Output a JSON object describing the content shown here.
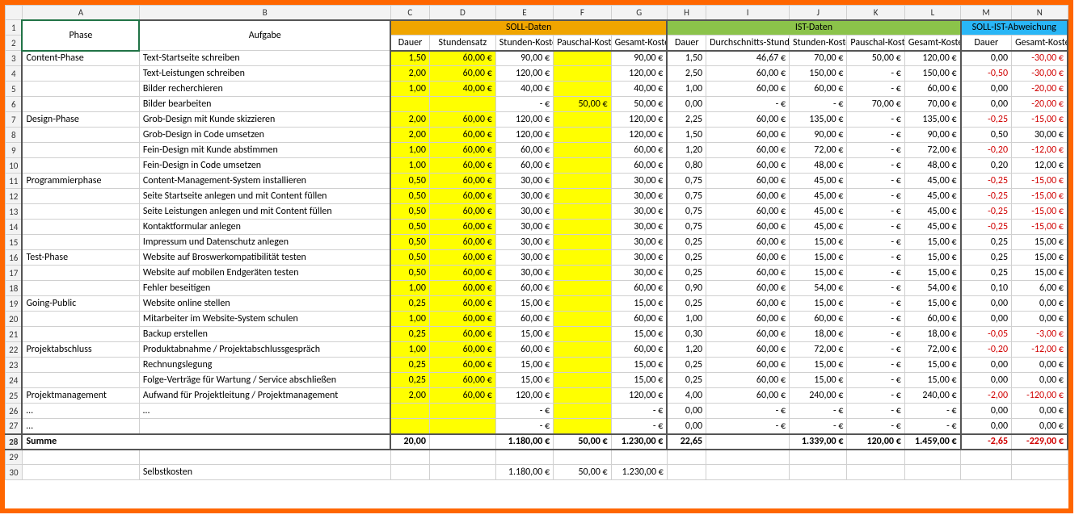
{
  "colLetters": [
    "",
    "A",
    "B",
    "C",
    "D",
    "E",
    "F",
    "G",
    "H",
    "I",
    "J",
    "K",
    "L",
    "M",
    "N"
  ],
  "widths": [
    20,
    138,
    296,
    46,
    78,
    68,
    68,
    66,
    46,
    98,
    68,
    68,
    66,
    60,
    66
  ],
  "header": {
    "phase": "Phase",
    "task": "Aufgabe",
    "soll": "SOLL-Daten",
    "ist": "IST-Daten",
    "abw": "SOLL-IST-Abweichung",
    "dauer": "Dauer",
    "satz": "Stundensatz",
    "stk": "Stunden-Kosten",
    "pk": "Pauschal-Kosten",
    "gk": "Gesamt-Kosten",
    "avg": "Durchschnitts-Stundensatz"
  },
  "rows": [
    {
      "n": 3,
      "phase": "Content-Phase",
      "task": "Text-Startseite schreiben",
      "sd": "1,50",
      "ss": "60,00 €",
      "sstk": "90,00 €",
      "spk": "",
      "sgk": "90,00 €",
      "id": "1,50",
      "ias": "46,67 €",
      "istk": "70,00 €",
      "ipk": "50,00 €",
      "igk": "120,00 €",
      "ad": "0,00",
      "agk": "-30,00 €",
      "adneg": false,
      "agneg": true
    },
    {
      "n": 4,
      "phase": "",
      "task": "Text-Leistungen schreiben",
      "sd": "2,00",
      "ss": "60,00 €",
      "sstk": "120,00 €",
      "spk": "",
      "sgk": "120,00 €",
      "id": "2,50",
      "ias": "60,00 €",
      "istk": "150,00 €",
      "ipk": "-   €",
      "igk": "150,00 €",
      "ad": "-0,50",
      "agk": "-30,00 €",
      "adneg": true,
      "agneg": true
    },
    {
      "n": 5,
      "phase": "",
      "task": "Bilder recherchieren",
      "sd": "1,00",
      "ss": "40,00 €",
      "sstk": "40,00 €",
      "spk": "",
      "sgk": "40,00 €",
      "id": "1,00",
      "ias": "60,00 €",
      "istk": "60,00 €",
      "ipk": "-   €",
      "igk": "60,00 €",
      "ad": "0,00",
      "agk": "-20,00 €",
      "adneg": false,
      "agneg": true
    },
    {
      "n": 6,
      "phase": "",
      "task": "Bilder bearbeiten",
      "sd": "",
      "ss": "",
      "sstk": "-   €",
      "spk": "50,00 €",
      "sgk": "50,00 €",
      "id": "0,00",
      "ias": "-   €",
      "istk": "-   €",
      "ipk": "70,00 €",
      "igk": "70,00 €",
      "ad": "0,00",
      "agk": "-20,00 €",
      "adneg": false,
      "agneg": true
    },
    {
      "n": 7,
      "phase": "Design-Phase",
      "task": "Grob-Design mit Kunde skizzieren",
      "sd": "2,00",
      "ss": "60,00 €",
      "sstk": "120,00 €",
      "spk": "",
      "sgk": "120,00 €",
      "id": "2,25",
      "ias": "60,00 €",
      "istk": "135,00 €",
      "ipk": "-   €",
      "igk": "135,00 €",
      "ad": "-0,25",
      "agk": "-15,00 €",
      "adneg": true,
      "agneg": true
    },
    {
      "n": 8,
      "phase": "",
      "task": "Grob-Design in Code umsetzen",
      "sd": "2,00",
      "ss": "60,00 €",
      "sstk": "120,00 €",
      "spk": "",
      "sgk": "120,00 €",
      "id": "1,50",
      "ias": "60,00 €",
      "istk": "90,00 €",
      "ipk": "-   €",
      "igk": "90,00 €",
      "ad": "0,50",
      "agk": "30,00 €",
      "adneg": false,
      "agneg": false
    },
    {
      "n": 9,
      "phase": "",
      "task": "Fein-Design mit Kunde abstimmen",
      "sd": "1,00",
      "ss": "60,00 €",
      "sstk": "60,00 €",
      "spk": "",
      "sgk": "60,00 €",
      "id": "1,20",
      "ias": "60,00 €",
      "istk": "72,00 €",
      "ipk": "-   €",
      "igk": "72,00 €",
      "ad": "-0,20",
      "agk": "-12,00 €",
      "adneg": true,
      "agneg": true
    },
    {
      "n": 10,
      "phase": "",
      "task": "Fein-Design in Code umsetzen",
      "sd": "1,00",
      "ss": "60,00 €",
      "sstk": "60,00 €",
      "spk": "",
      "sgk": "60,00 €",
      "id": "0,80",
      "ias": "60,00 €",
      "istk": "48,00 €",
      "ipk": "-   €",
      "igk": "48,00 €",
      "ad": "0,20",
      "agk": "12,00 €",
      "adneg": false,
      "agneg": false
    },
    {
      "n": 11,
      "phase": "Programmierphase",
      "task": "Content-Management-System installieren",
      "sd": "0,50",
      "ss": "60,00 €",
      "sstk": "30,00 €",
      "spk": "",
      "sgk": "30,00 €",
      "id": "0,75",
      "ias": "60,00 €",
      "istk": "45,00 €",
      "ipk": "-   €",
      "igk": "45,00 €",
      "ad": "-0,25",
      "agk": "-15,00 €",
      "adneg": true,
      "agneg": true
    },
    {
      "n": 12,
      "phase": "",
      "task": "Seite Startseite anlegen und mit Content füllen",
      "sd": "0,50",
      "ss": "60,00 €",
      "sstk": "30,00 €",
      "spk": "",
      "sgk": "30,00 €",
      "id": "0,75",
      "ias": "60,00 €",
      "istk": "45,00 €",
      "ipk": "-   €",
      "igk": "45,00 €",
      "ad": "-0,25",
      "agk": "-15,00 €",
      "adneg": true,
      "agneg": true
    },
    {
      "n": 13,
      "phase": "",
      "task": "Seite Leistungen anlegen und mit Content füllen",
      "sd": "0,50",
      "ss": "60,00 €",
      "sstk": "30,00 €",
      "spk": "",
      "sgk": "30,00 €",
      "id": "0,75",
      "ias": "60,00 €",
      "istk": "45,00 €",
      "ipk": "-   €",
      "igk": "45,00 €",
      "ad": "-0,25",
      "agk": "-15,00 €",
      "adneg": true,
      "agneg": true
    },
    {
      "n": 14,
      "phase": "",
      "task": "Kontaktformular anlegen",
      "sd": "0,50",
      "ss": "60,00 €",
      "sstk": "30,00 €",
      "spk": "",
      "sgk": "30,00 €",
      "id": "0,75",
      "ias": "60,00 €",
      "istk": "45,00 €",
      "ipk": "-   €",
      "igk": "45,00 €",
      "ad": "-0,25",
      "agk": "-15,00 €",
      "adneg": true,
      "agneg": true
    },
    {
      "n": 15,
      "phase": "",
      "task": "Impressum und Datenschutz anlegen",
      "sd": "0,50",
      "ss": "60,00 €",
      "sstk": "30,00 €",
      "spk": "",
      "sgk": "30,00 €",
      "id": "0,25",
      "ias": "60,00 €",
      "istk": "15,00 €",
      "ipk": "-   €",
      "igk": "15,00 €",
      "ad": "0,25",
      "agk": "15,00 €",
      "adneg": false,
      "agneg": false
    },
    {
      "n": 16,
      "phase": "Test-Phase",
      "task": "Website auf Broswerkompatibilität testen",
      "sd": "0,50",
      "ss": "60,00 €",
      "sstk": "30,00 €",
      "spk": "",
      "sgk": "30,00 €",
      "id": "0,25",
      "ias": "60,00 €",
      "istk": "15,00 €",
      "ipk": "-   €",
      "igk": "15,00 €",
      "ad": "0,25",
      "agk": "15,00 €",
      "adneg": false,
      "agneg": false
    },
    {
      "n": 17,
      "phase": "",
      "task": "Website auf mobilen Endgeräten testen",
      "sd": "0,50",
      "ss": "60,00 €",
      "sstk": "30,00 €",
      "spk": "",
      "sgk": "30,00 €",
      "id": "0,25",
      "ias": "60,00 €",
      "istk": "15,00 €",
      "ipk": "-   €",
      "igk": "15,00 €",
      "ad": "0,25",
      "agk": "15,00 €",
      "adneg": false,
      "agneg": false
    },
    {
      "n": 18,
      "phase": "",
      "task": "Fehler beseitigen",
      "sd": "1,00",
      "ss": "60,00 €",
      "sstk": "60,00 €",
      "spk": "",
      "sgk": "60,00 €",
      "id": "0,90",
      "ias": "60,00 €",
      "istk": "54,00 €",
      "ipk": "-   €",
      "igk": "54,00 €",
      "ad": "0,10",
      "agk": "6,00 €",
      "adneg": false,
      "agneg": false
    },
    {
      "n": 19,
      "phase": "Going-Public",
      "task": "Website online stellen",
      "sd": "0,25",
      "ss": "60,00 €",
      "sstk": "15,00 €",
      "spk": "",
      "sgk": "15,00 €",
      "id": "0,25",
      "ias": "60,00 €",
      "istk": "15,00 €",
      "ipk": "-   €",
      "igk": "15,00 €",
      "ad": "0,00",
      "agk": "0,00 €",
      "adneg": false,
      "agneg": false
    },
    {
      "n": 20,
      "phase": "",
      "task": "Mitarbeiter im Website-System schulen",
      "sd": "1,00",
      "ss": "60,00 €",
      "sstk": "60,00 €",
      "spk": "",
      "sgk": "60,00 €",
      "id": "1,00",
      "ias": "60,00 €",
      "istk": "60,00 €",
      "ipk": "-   €",
      "igk": "60,00 €",
      "ad": "0,00",
      "agk": "0,00 €",
      "adneg": false,
      "agneg": false
    },
    {
      "n": 21,
      "phase": "",
      "task": "Backup erstellen",
      "sd": "0,25",
      "ss": "60,00 €",
      "sstk": "15,00 €",
      "spk": "",
      "sgk": "15,00 €",
      "id": "0,30",
      "ias": "60,00 €",
      "istk": "18,00 €",
      "ipk": "-   €",
      "igk": "18,00 €",
      "ad": "-0,05",
      "agk": "-3,00 €",
      "adneg": true,
      "agneg": true
    },
    {
      "n": 22,
      "phase": "Projektabschluss",
      "task": "Produktabnahme / Projektabschlussgespräch",
      "sd": "1,00",
      "ss": "60,00 €",
      "sstk": "60,00 €",
      "spk": "",
      "sgk": "60,00 €",
      "id": "1,20",
      "ias": "60,00 €",
      "istk": "72,00 €",
      "ipk": "-   €",
      "igk": "72,00 €",
      "ad": "-0,20",
      "agk": "-12,00 €",
      "adneg": true,
      "agneg": true
    },
    {
      "n": 23,
      "phase": "",
      "task": "Rechnungslegung",
      "sd": "0,25",
      "ss": "60,00 €",
      "sstk": "15,00 €",
      "spk": "",
      "sgk": "15,00 €",
      "id": "0,25",
      "ias": "60,00 €",
      "istk": "15,00 €",
      "ipk": "-   €",
      "igk": "15,00 €",
      "ad": "0,00",
      "agk": "0,00 €",
      "adneg": false,
      "agneg": false
    },
    {
      "n": 24,
      "phase": "",
      "task": "Folge-Verträge für Wartung / Service abschließen",
      "sd": "0,25",
      "ss": "60,00 €",
      "sstk": "15,00 €",
      "spk": "",
      "sgk": "15,00 €",
      "id": "0,25",
      "ias": "60,00 €",
      "istk": "15,00 €",
      "ipk": "-   €",
      "igk": "15,00 €",
      "ad": "0,00",
      "agk": "0,00 €",
      "adneg": false,
      "agneg": false
    },
    {
      "n": 25,
      "phase": "Projektmanagement",
      "task": "Aufwand für Projektleitung / Projektmanagement",
      "sd": "2,00",
      "ss": "60,00 €",
      "sstk": "120,00 €",
      "spk": "",
      "sgk": "120,00 €",
      "id": "4,00",
      "ias": "60,00 €",
      "istk": "240,00 €",
      "ipk": "-   €",
      "igk": "240,00 €",
      "ad": "-2,00",
      "agk": "-120,00 €",
      "adneg": true,
      "agneg": true
    },
    {
      "n": 26,
      "phase": "…",
      "task": "…",
      "sd": "",
      "ss": "",
      "sstk": "-   €",
      "spk": "",
      "sgk": "-   €",
      "id": "0,00",
      "ias": "-   €",
      "istk": "-   €",
      "ipk": "-   €",
      "igk": "-   €",
      "ad": "0,00",
      "agk": "0,00 €",
      "adneg": false,
      "agneg": false
    },
    {
      "n": 27,
      "phase": "…",
      "task": "",
      "sd": "",
      "ss": "",
      "sstk": "-   €",
      "spk": "",
      "sgk": "-   €",
      "id": "0,00",
      "ias": "-   €",
      "istk": "-   €",
      "ipk": "-   €",
      "igk": "-   €",
      "ad": "0,00",
      "agk": "0,00 €",
      "adneg": false,
      "agneg": false
    }
  ],
  "sum": {
    "n": 28,
    "label": "Summe",
    "sd": "20,00",
    "sstk": "1.180,00 €",
    "spk": "50,00 €",
    "sgk": "1.230,00 €",
    "id": "22,65",
    "istk": "1.339,00 €",
    "ipk": "120,00 €",
    "igk": "1.459,00 €",
    "ad": "-2,65",
    "agk": "-229,00 €"
  },
  "selfcost": {
    "n": 30,
    "label": "Selbstkosten",
    "sstk": "1.180,00 €",
    "spk": "50,00 €",
    "sgk": "1.230,00 €"
  }
}
